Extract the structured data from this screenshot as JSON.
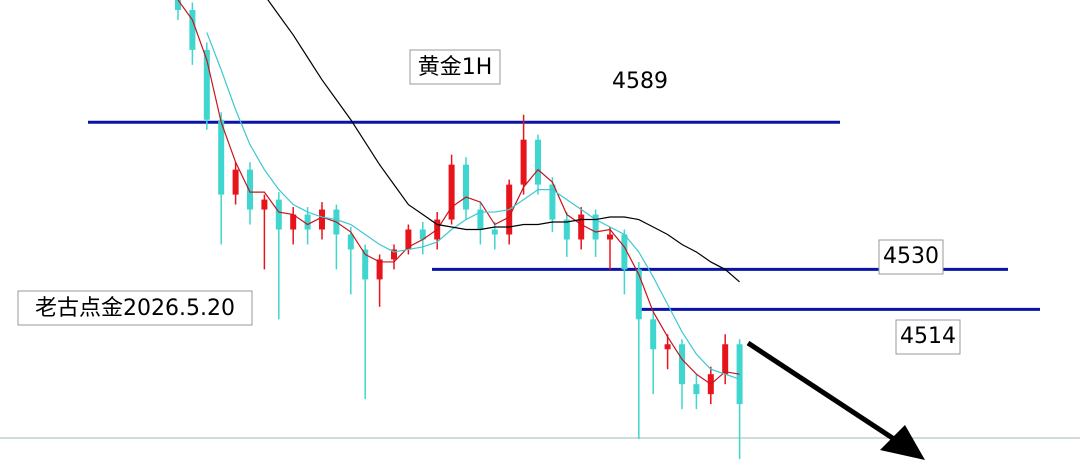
{
  "chart_data": {
    "type": "candlestick",
    "title": "黄金1H",
    "watermark": "老古点金2026.5.20",
    "ylim": [
      4450,
      4638
    ],
    "open": [
      4640,
      4634,
      4618,
      4590,
      4560,
      4570,
      4554,
      4558,
      4546,
      4552,
      4546,
      4554,
      4544,
      4538,
      4526,
      4534,
      4538,
      4546,
      4542,
      4550,
      4572,
      4554,
      4546,
      4544,
      4564,
      4582,
      4564,
      4550,
      4542,
      4552,
      4542,
      4544,
      4530,
      4510,
      4498,
      4500,
      4484,
      4480,
      4488,
      4500
    ],
    "high": [
      4644,
      4637,
      4621,
      4593,
      4573,
      4573,
      4560,
      4561,
      4555,
      4555,
      4557,
      4556,
      4547,
      4540,
      4536,
      4540,
      4548,
      4549,
      4553,
      4576,
      4575,
      4557,
      4549,
      4566,
      4592,
      4584,
      4567,
      4553,
      4555,
      4554,
      4547,
      4546,
      4533,
      4513,
      4504,
      4502,
      4488,
      4491,
      4504,
      4502
    ],
    "low": [
      4630,
      4612,
      4586,
      4540,
      4556,
      4548,
      4530,
      4510,
      4540,
      4540,
      4542,
      4530,
      4520,
      4478,
      4515,
      4530,
      4536,
      4536,
      4538,
      4548,
      4550,
      4540,
      4538,
      4540,
      4560,
      4560,
      4545,
      4535,
      4538,
      4535,
      4530,
      4520,
      4462,
      4480,
      4490,
      4474,
      4474,
      4476,
      4484,
      4454
    ],
    "close": [
      4634,
      4618,
      4590,
      4560,
      4570,
      4554,
      4558,
      4546,
      4552,
      4546,
      4554,
      4544,
      4538,
      4526,
      4534,
      4538,
      4546,
      4542,
      4550,
      4572,
      4554,
      4546,
      4544,
      4564,
      4582,
      4564,
      4550,
      4542,
      4552,
      4542,
      4544,
      4530,
      4510,
      4498,
      4500,
      4484,
      4480,
      4488,
      4500,
      4476
    ],
    "up_color": "#e8141c",
    "down_color": "#3fd6cf",
    "ma": [
      {
        "color": "#c8141c",
        "values": [
          4638,
          4630,
          4614,
          4589,
          4573,
          4561,
          4561,
          4553,
          4552,
          4548,
          4551,
          4549,
          4545,
          4536,
          4533,
          4533,
          4539,
          4542,
          4546,
          4555,
          4559,
          4557,
          4548,
          4551,
          4563,
          4570,
          4565,
          4552,
          4548,
          4545,
          4546,
          4539,
          4528,
          4513,
          4503,
          4494,
          4488,
          4484,
          4489,
          4488
        ]
      },
      {
        "color": "#3fc8d0",
        "values": [
          null,
          null,
          4625,
          4610,
          4594,
          4580,
          4570,
          4562,
          4556,
          4553,
          4551,
          4550,
          4548,
          4544,
          4540,
          4537,
          4538,
          4539,
          4541,
          4546,
          4550,
          4553,
          4553,
          4554,
          4558,
          4562,
          4562,
          4558,
          4554,
          4550,
          4547,
          4544,
          4537,
          4527,
          4516,
          4505,
          4496,
          4490,
          4488,
          4486
        ]
      },
      {
        "color": "#000000",
        "values": [
          null,
          null,
          null,
          null,
          null,
          null,
          4640,
          4632,
          4624,
          4615,
          4606,
          4598,
          4590,
          4581,
          4572,
          4564,
          4556,
          4552,
          4548,
          4547,
          4546,
          4546,
          4547,
          4547,
          4548,
          4548,
          4549,
          4549,
          4550,
          4550,
          4551,
          4551,
          4550,
          4547,
          4544,
          4540,
          4537,
          4533,
          4530,
          4525
        ]
      }
    ],
    "levels": [
      4589,
      4530,
      4514
    ],
    "level_color": "#0a14a8"
  }
}
